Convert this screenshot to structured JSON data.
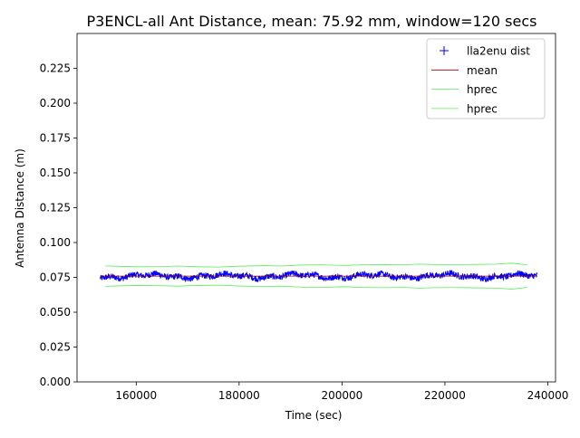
{
  "chart_data": {
    "type": "line",
    "title": "P3ENCL-all Ant Distance, mean: 75.92 mm, window=120 secs",
    "xlabel": "Time (sec)",
    "ylabel": "Antenna Distance (m)",
    "xlim": [
      148500,
      241500
    ],
    "ylim": [
      0.0,
      0.25
    ],
    "x_ticks": [
      160000,
      180000,
      200000,
      220000,
      240000
    ],
    "x_tick_labels": [
      "160000",
      "180000",
      "200000",
      "220000",
      "240000"
    ],
    "y_ticks": [
      0.0,
      0.025,
      0.05,
      0.075,
      0.1,
      0.125,
      0.15,
      0.175,
      0.2,
      0.225
    ],
    "y_tick_labels": [
      "0.000",
      "0.025",
      "0.050",
      "0.075",
      "0.100",
      "0.125",
      "0.150",
      "0.175",
      "0.200",
      "0.225"
    ],
    "grid": false,
    "legend_position": "top-right",
    "series": [
      {
        "name": "lla2enu dist",
        "style": "blue plus markers",
        "color": "#0000ff",
        "x_range": [
          153000,
          238000
        ],
        "approx_mean": 0.0759,
        "approx_spread": 0.004
      },
      {
        "name": "mean",
        "style": "line",
        "color": "#8b0000",
        "x": [
          153000,
          238000
        ],
        "y": [
          0.0759,
          0.0759
        ]
      },
      {
        "name": "hprec",
        "style": "line",
        "color": "#55ee55",
        "x": [
          154000,
          160000,
          165000,
          168000,
          172000,
          176000,
          180000,
          185000,
          188000,
          192000,
          196000,
          200000,
          204000,
          208000,
          212000,
          215000,
          218000,
          222000,
          226000,
          230000,
          233000,
          236000
        ],
        "y": [
          0.0832,
          0.0826,
          0.0827,
          0.0831,
          0.0826,
          0.0824,
          0.083,
          0.0834,
          0.0831,
          0.0838,
          0.084,
          0.0835,
          0.084,
          0.0842,
          0.084,
          0.0845,
          0.0842,
          0.0841,
          0.0843,
          0.0845,
          0.0852,
          0.084
        ]
      },
      {
        "name": "hprec",
        "style": "line",
        "color": "#55ee55",
        "x": [
          154000,
          160000,
          165000,
          168000,
          172000,
          176000,
          180000,
          185000,
          188000,
          192000,
          196000,
          200000,
          204000,
          208000,
          212000,
          215000,
          218000,
          222000,
          226000,
          230000,
          233000,
          236000
        ],
        "y": [
          0.0686,
          0.0692,
          0.069,
          0.0687,
          0.0692,
          0.0694,
          0.0688,
          0.0684,
          0.0687,
          0.068,
          0.0678,
          0.0683,
          0.0678,
          0.0676,
          0.0678,
          0.0673,
          0.0676,
          0.0677,
          0.0675,
          0.0673,
          0.0666,
          0.0678
        ]
      }
    ]
  }
}
